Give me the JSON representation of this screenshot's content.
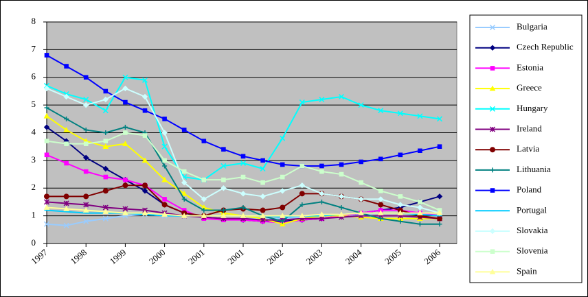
{
  "chart_data": {
    "type": "line",
    "categories": [
      "1997",
      null,
      "1998",
      null,
      "1999",
      null,
      "2000",
      null,
      "2001",
      null,
      "2001",
      null,
      "2002",
      null,
      "2003",
      null,
      "2004",
      null,
      "2005",
      null,
      "2006"
    ],
    "ylim": [
      0,
      8
    ],
    "yticks": [
      0,
      1,
      2,
      3,
      4,
      5,
      6,
      7,
      8
    ],
    "grid": true,
    "legend": "right",
    "series": [
      {
        "name": "Bulgaria",
        "color": "#99ccff",
        "marker": "x",
        "values": [
          0.7,
          0.65,
          0.8,
          0.9,
          1.0,
          1.05,
          1.0,
          1.0,
          0.95,
          0.9,
          0.9,
          0.9,
          0.9,
          0.95,
          1.0,
          1.0,
          1.05,
          1.1,
          1.1,
          1.1,
          1.0
        ]
      },
      {
        "name": "Czech Republic",
        "color": "#000080",
        "marker": "diamond",
        "values": [
          4.2,
          3.7,
          3.1,
          2.7,
          2.3,
          1.9,
          1.4,
          1.1,
          0.95,
          0.9,
          0.85,
          0.8,
          0.8,
          0.85,
          0.9,
          1.0,
          1.1,
          1.2,
          1.3,
          1.5,
          1.7
        ]
      },
      {
        "name": "Estonia",
        "color": "#ff00ff",
        "marker": "square",
        "values": [
          3.2,
          2.9,
          2.6,
          2.4,
          2.3,
          2.1,
          1.6,
          1.2,
          0.9,
          0.85,
          0.85,
          0.8,
          0.75,
          0.85,
          0.9,
          1.0,
          1.1,
          1.2,
          1.2,
          1.1,
          1.0
        ]
      },
      {
        "name": "Greece",
        "color": "#ffff00",
        "marker": "triangle",
        "values": [
          4.6,
          4.1,
          3.7,
          3.5,
          3.6,
          3.0,
          2.3,
          1.8,
          1.3,
          1.1,
          1.0,
          0.9,
          0.7,
          0.9,
          1.0,
          1.0,
          0.95,
          0.9,
          0.9,
          0.9,
          0.9
        ]
      },
      {
        "name": "Hungary",
        "color": "#00ffff",
        "marker": "x",
        "values": [
          5.7,
          5.4,
          5.2,
          4.8,
          6.0,
          5.9,
          3.5,
          2.4,
          2.3,
          2.8,
          2.9,
          2.7,
          3.8,
          5.1,
          5.2,
          5.3,
          5.0,
          4.8,
          4.7,
          4.6,
          4.5
        ]
      },
      {
        "name": "Ireland",
        "color": "#800080",
        "marker": "asterisk",
        "values": [
          1.5,
          1.45,
          1.4,
          1.3,
          1.25,
          1.2,
          1.1,
          1.0,
          0.95,
          0.9,
          0.9,
          0.85,
          0.85,
          0.9,
          0.9,
          0.95,
          1.0,
          1.0,
          1.0,
          0.95,
          0.9
        ]
      },
      {
        "name": "Latvia",
        "color": "#800000",
        "marker": "circle",
        "values": [
          1.7,
          1.7,
          1.7,
          1.9,
          2.1,
          2.1,
          1.4,
          1.1,
          1.0,
          1.2,
          1.25,
          1.2,
          1.3,
          1.8,
          1.8,
          1.7,
          1.6,
          1.4,
          1.2,
          1.0,
          0.9
        ]
      },
      {
        "name": "Lithuania",
        "color": "#008080",
        "marker": "plus",
        "values": [
          4.9,
          4.5,
          4.1,
          4.0,
          4.2,
          4.0,
          2.8,
          1.6,
          1.2,
          1.2,
          1.3,
          1.0,
          0.8,
          1.4,
          1.5,
          1.3,
          1.1,
          0.9,
          0.8,
          0.7,
          0.7
        ]
      },
      {
        "name": "Poland",
        "color": "#0000ff",
        "marker": "square",
        "values": [
          6.8,
          6.4,
          6.0,
          5.5,
          5.1,
          4.8,
          4.5,
          4.1,
          3.7,
          3.4,
          3.15,
          3.0,
          2.85,
          2.8,
          2.8,
          2.85,
          2.95,
          3.05,
          3.2,
          3.35,
          3.5
        ]
      },
      {
        "name": "Portugal",
        "color": "#00ccff",
        "marker": "dash",
        "values": [
          1.2,
          1.15,
          1.1,
          1.1,
          1.1,
          1.05,
          1.0,
          1.0,
          1.0,
          1.0,
          1.0,
          1.0,
          0.95,
          1.0,
          1.0,
          1.05,
          1.1,
          1.1,
          1.1,
          1.05,
          1.0
        ]
      },
      {
        "name": "Slovakia",
        "color": "#ccffff",
        "marker": "diamond",
        "values": [
          5.6,
          5.3,
          5.0,
          5.2,
          5.6,
          5.3,
          4.0,
          2.2,
          1.6,
          2.0,
          1.8,
          1.7,
          1.9,
          2.1,
          1.8,
          1.7,
          1.6,
          1.6,
          1.4,
          1.3,
          1.1
        ]
      },
      {
        "name": "Slovenia",
        "color": "#ccffcc",
        "marker": "square",
        "values": [
          3.7,
          3.6,
          3.6,
          3.7,
          4.0,
          3.9,
          3.0,
          2.6,
          2.3,
          2.3,
          2.4,
          2.2,
          2.4,
          2.8,
          2.6,
          2.5,
          2.2,
          1.9,
          1.7,
          1.5,
          1.2
        ]
      },
      {
        "name": "Spain",
        "color": "#ffff99",
        "marker": "triangle",
        "values": [
          1.3,
          1.25,
          1.2,
          1.15,
          1.1,
          1.1,
          1.05,
          1.0,
          1.0,
          1.0,
          1.0,
          1.0,
          1.0,
          1.0,
          1.05,
          1.05,
          1.1,
          1.1,
          1.1,
          1.1,
          1.1
        ]
      }
    ]
  }
}
